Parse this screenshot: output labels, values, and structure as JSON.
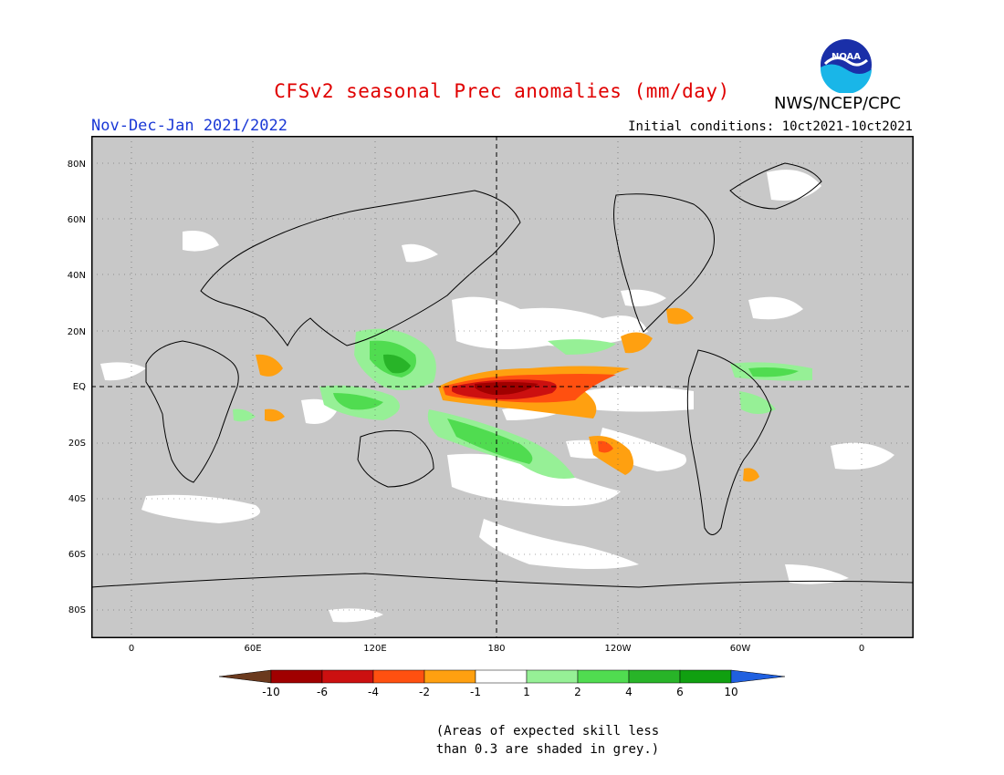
{
  "header": {
    "title": "CFSv2 seasonal Prec anomalies (mm/day)",
    "season": "Nov-Dec-Jan 2021/2022",
    "initial_conditions": "Initial conditions: 10ct2021-10ct2021",
    "agency": "NWS/NCEP/CPC",
    "logo_text": "NOAA"
  },
  "map": {
    "lat_labels": [
      "80N",
      "60N",
      "40N",
      "20N",
      "EQ",
      "20S",
      "40S",
      "60S",
      "80S"
    ],
    "lon_labels": [
      "0",
      "60E",
      "120E",
      "180",
      "120W",
      "60W",
      "0"
    ],
    "background_color": "#c8c8c8"
  },
  "colorbar": {
    "labels": [
      "-10",
      "-6",
      "-4",
      "-2",
      "-1",
      "1",
      "2",
      "4",
      "6",
      "10"
    ],
    "colors": [
      "#6b3a1e",
      "#a00000",
      "#cc1010",
      "#ff5010",
      "#ffa010",
      "#ffffff",
      "#96f096",
      "#50dc50",
      "#28b428",
      "#10a010",
      "#2060e0"
    ]
  },
  "note": {
    "line1": "(Areas of expected skill less",
    "line2": "than 0.3 are shaded in grey.)"
  }
}
